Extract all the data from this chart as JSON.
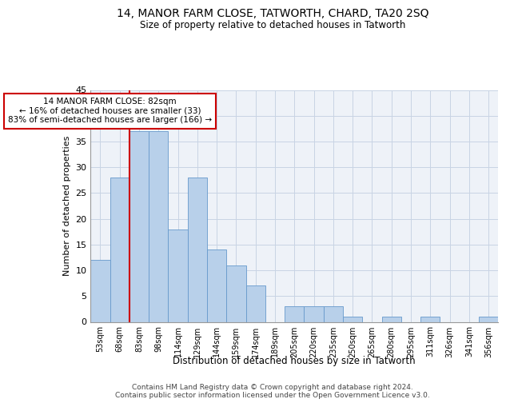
{
  "title": "14, MANOR FARM CLOSE, TATWORTH, CHARD, TA20 2SQ",
  "subtitle": "Size of property relative to detached houses in Tatworth",
  "xlabel": "Distribution of detached houses by size in Tatworth",
  "ylabel": "Number of detached properties",
  "bar_color": "#b8d0ea",
  "bar_edge_color": "#6699cc",
  "background_color": "#eef2f8",
  "grid_color": "#c8d4e4",
  "annotation_line_color": "#cc0000",
  "annotation_box_color": "#cc0000",
  "categories": [
    "53sqm",
    "68sqm",
    "83sqm",
    "98sqm",
    "114sqm",
    "129sqm",
    "144sqm",
    "159sqm",
    "174sqm",
    "189sqm",
    "205sqm",
    "220sqm",
    "235sqm",
    "250sqm",
    "265sqm",
    "280sqm",
    "295sqm",
    "311sqm",
    "326sqm",
    "341sqm",
    "356sqm"
  ],
  "values": [
    12,
    28,
    37,
    37,
    18,
    28,
    14,
    11,
    7,
    0,
    3,
    3,
    3,
    1,
    0,
    1,
    0,
    1,
    0,
    0,
    1
  ],
  "ylim": [
    0,
    45
  ],
  "yticks": [
    0,
    5,
    10,
    15,
    20,
    25,
    30,
    35,
    40,
    45
  ],
  "annotation_text": "14 MANOR FARM CLOSE: 82sqm\n← 16% of detached houses are smaller (33)\n83% of semi-detached houses are larger (166) →",
  "vline_x": 2,
  "footer_line1": "Contains HM Land Registry data © Crown copyright and database right 2024.",
  "footer_line2": "Contains public sector information licensed under the Open Government Licence v3.0."
}
